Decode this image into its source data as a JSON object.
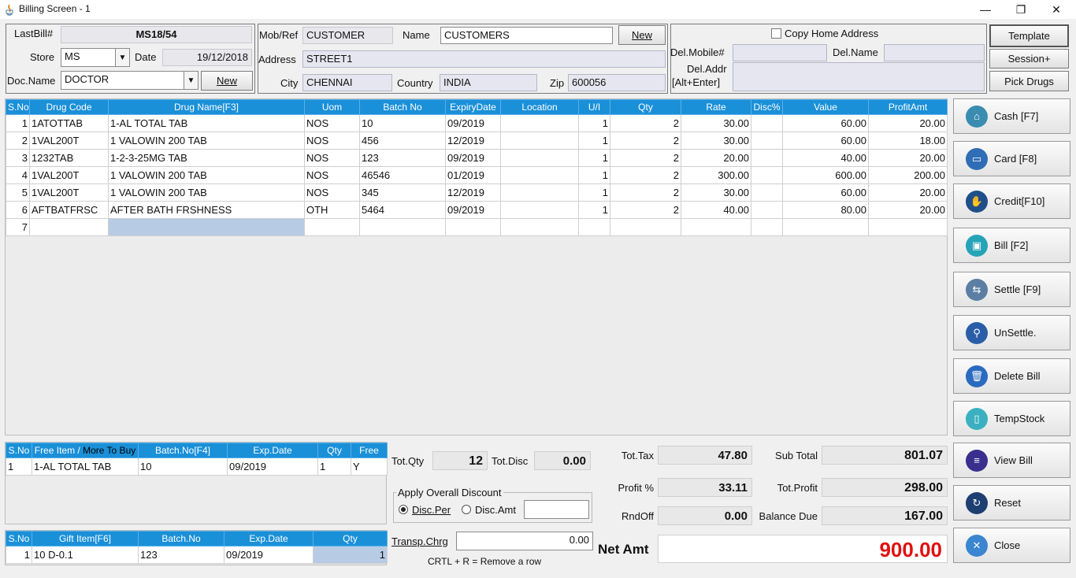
{
  "window": {
    "title": "Billing Screen - 1",
    "minimize": "—",
    "restore": "❐",
    "close": "✕"
  },
  "header": {
    "lastbill_label": "LastBill#",
    "lastbill_value": "MS18/54",
    "store_label": "Store",
    "store_value": "MS",
    "date_label": "Date",
    "date_value": "19/12/2018",
    "docname_label": "Doc.Name",
    "docname_value": "DOCTOR",
    "doc_new_button": "New",
    "mobref_label": "Mob/Ref",
    "mobref_value": "CUSTOMER",
    "name_label": "Name",
    "name_value": "CUSTOMERS",
    "cust_new_button": "New",
    "address_label": "Address",
    "address_value": "STREET1",
    "city_label": "City",
    "city_value": "CHENNAI",
    "country_label": "Country",
    "country_value": "INDIA",
    "zip_label": "Zip",
    "zip_value": "600056",
    "copy_home_label": "Copy Home Address",
    "delmobile_label": "Del.Mobile#",
    "delmobile_value": "",
    "delname_label": "Del.Name",
    "delname_value": "",
    "deladdr_label_1": "Del.Addr",
    "deladdr_label_2": "[Alt+Enter]",
    "deladdr_value": "",
    "template_button": "Template",
    "session_button": "Session+",
    "pickdrugs_button": "Pick Drugs"
  },
  "main_grid": {
    "columns": [
      "S.No",
      "Drug Code",
      "Drug Name[F3]",
      "Uom",
      "Batch No",
      "ExpiryDate",
      "Location",
      "U/I",
      "Qty",
      "Rate",
      "Disc%",
      "Value",
      "ProfitAmt"
    ],
    "rows": [
      [
        "1",
        "1ATOTTAB",
        "1-AL TOTAL TAB",
        "NOS",
        "10",
        "09/2019",
        "",
        "1",
        "2",
        "30.00",
        "",
        "60.00",
        "20.00"
      ],
      [
        "2",
        "1VAL200T",
        "1 VALOWIN 200 TAB",
        "NOS",
        "456",
        "12/2019",
        "",
        "1",
        "2",
        "30.00",
        "",
        "60.00",
        "18.00"
      ],
      [
        "3",
        "1232TAB",
        "1-2-3-25MG TAB",
        "NOS",
        "123",
        "09/2019",
        "",
        "1",
        "2",
        "20.00",
        "",
        "40.00",
        "20.00"
      ],
      [
        "4",
        "1VAL200T",
        "1 VALOWIN 200 TAB",
        "NOS",
        "46546",
        "01/2019",
        "",
        "1",
        "2",
        "300.00",
        "",
        "600.00",
        "200.00"
      ],
      [
        "5",
        "1VAL200T",
        "1 VALOWIN 200 TAB",
        "NOS",
        "345",
        "12/2019",
        "",
        "1",
        "2",
        "30.00",
        "",
        "60.00",
        "20.00"
      ],
      [
        "6",
        "AFTBATFRSC",
        "AFTER BATH FRSHNESS",
        "OTH",
        "5464",
        "09/2019",
        "",
        "1",
        "2",
        "40.00",
        "",
        "80.00",
        "20.00"
      ],
      [
        "7",
        "",
        "",
        "",
        "",
        "",
        "",
        "",
        "",
        "",
        "",
        "",
        ""
      ]
    ]
  },
  "free_grid": {
    "col_sno": "S.No",
    "col_item_a": "Free Item / ",
    "col_item_b": "More To Buy",
    "col_batch": "Batch.No[F4]",
    "col_exp": "Exp.Date",
    "col_qty": "Qty",
    "col_free": "Free",
    "rows": [
      [
        "1",
        "1-AL TOTAL TAB",
        "10",
        "09/2019",
        "1",
        "Y"
      ]
    ]
  },
  "gift_grid": {
    "columns": [
      "S.No",
      "Gift Item[F6]",
      "Batch.No",
      "Exp.Date",
      "Qty"
    ],
    "rows": [
      [
        "1",
        "10 D-0.1",
        "123",
        "09/2019",
        "1"
      ]
    ]
  },
  "totals": {
    "totqty_label": "Tot.Qty",
    "totqty_value": "12",
    "totdisc_label": "Tot.Disc",
    "totdisc_value": "0.00",
    "discount_group": "Apply Overall Discount",
    "discper_label": "Disc.Per",
    "discamt_label": "Disc.Amt",
    "discamt_value": "",
    "transp_label": "Transp.Chrg",
    "transp_value": "0.00",
    "hint": "CRTL + R = Remove a row",
    "tottax_label": "Tot.Tax",
    "tottax_value": "47.80",
    "profitpct_label": "Profit %",
    "profitpct_value": "33.11",
    "rndoff_label": "RndOff",
    "rndoff_value": "0.00",
    "subtotal_label": "Sub Total",
    "subtotal_value": "801.07",
    "totprofit_label": "Tot.Profit",
    "totprofit_value": "298.00",
    "balance_label": "Balance Due",
    "balance_value": "167.00",
    "netamt_label": "Net Amt",
    "netamt_value": "900.00",
    "netamt_color": "#e01010"
  },
  "actions": {
    "cash": "Cash [F7]",
    "card": "Card [F8]",
    "credit": "Credit[F10]",
    "bill": "Bill [F2]",
    "settle": "Settle [F9]",
    "unsettle": "UnSettle.",
    "delete": "Delete Bill",
    "tempstock": "TempStock",
    "viewbill": "View Bill",
    "reset": "Reset",
    "close": "Close"
  }
}
